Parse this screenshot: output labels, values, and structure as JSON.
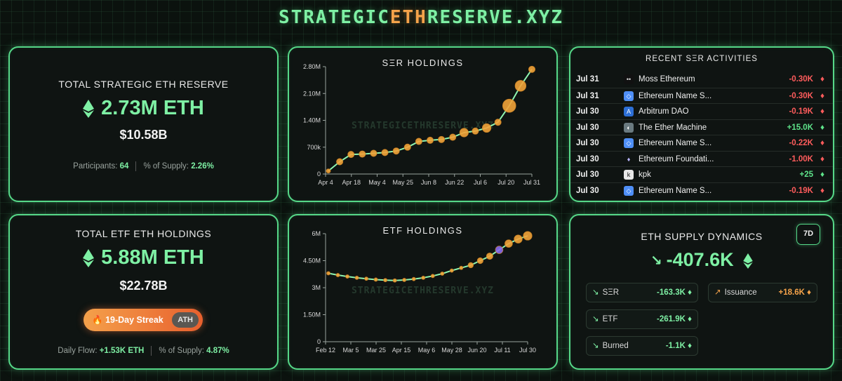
{
  "site": {
    "title_pre": "STRATEGIC",
    "title_accent": "ETH",
    "title_post": "RESERVE.XYZ"
  },
  "reserve": {
    "label": "TOTAL STRATEGIC ETH RESERVE",
    "value": "2.73M ETH",
    "usd": "$10.58B",
    "participants_label": "Participants:",
    "participants_value": "64",
    "supply_label": "% of Supply:",
    "supply_value": "2.26%"
  },
  "etf": {
    "label": "TOTAL ETF ETH HOLDINGS",
    "value": "5.88M ETH",
    "usd": "$22.78B",
    "streak_label": "19-Day Streak",
    "streak_icon": "fire-icon",
    "ath_label": "ATH",
    "flow_label": "Daily Flow:",
    "flow_value": "+1.53K ETH",
    "supply_label": "% of Supply:",
    "supply_value": "4.87%"
  },
  "watermark": "STRATEGICETHRESERVE.XYZ",
  "chart_data": [
    {
      "type": "line",
      "title": "SΞR HOLDINGS",
      "x_tick_labels": [
        "Apr 4",
        "Apr 18",
        "May 4",
        "May 25",
        "Jun 8",
        "Jun 22",
        "Jul 6",
        "Jul 20",
        "Jul 31"
      ],
      "y_tick_labels": [
        "0",
        "700k",
        "1.40M",
        "2.10M",
        "2.80M"
      ],
      "ylim": [
        0,
        2800000
      ],
      "x": [
        "Apr 4",
        "Apr 11",
        "Apr 18",
        "Apr 25",
        "May 1",
        "May 7",
        "May 14",
        "May 21",
        "May 25",
        "Jun 1",
        "Jun 8",
        "Jun 15",
        "Jun 22",
        "Jun 29",
        "Jul 6",
        "Jul 13",
        "Jul 20",
        "Jul 27",
        "Jul 31"
      ],
      "values": [
        80000,
        320000,
        510000,
        520000,
        540000,
        560000,
        600000,
        700000,
        850000,
        880000,
        900000,
        960000,
        1080000,
        1120000,
        1200000,
        1350000,
        1780000,
        2300000,
        2730000
      ],
      "marker_sizes": [
        1,
        2,
        2,
        2,
        2,
        2,
        2,
        2,
        2,
        2,
        2,
        2,
        3,
        2,
        3,
        2,
        5,
        4,
        2
      ],
      "grid": false,
      "marker_color": "#f2a33a",
      "line_color": "#8ef5b0"
    },
    {
      "type": "line",
      "title": "ETF HOLDINGS",
      "x_tick_labels": [
        "Feb 12",
        "Mar 5",
        "Mar 25",
        "Apr 15",
        "May 6",
        "May 28",
        "Jun 20",
        "Jul 11",
        "Jul 30"
      ],
      "y_tick_labels": [
        "0",
        "1.50M",
        "3M",
        "4.50M",
        "6M"
      ],
      "ylim": [
        0,
        6000000
      ],
      "x": [
        "Feb 12",
        "Feb 20",
        "Mar 1",
        "Mar 10",
        "Mar 20",
        "Mar 30",
        "Apr 10",
        "Apr 20",
        "Apr 30",
        "May 10",
        "May 20",
        "May 30",
        "Jun 10",
        "Jun 20",
        "Jun 30",
        "Jul 5",
        "Jul 10",
        "Jul 14",
        "Jul 18",
        "Jul 22",
        "Jul 26",
        "Jul 30"
      ],
      "values": [
        3800000,
        3700000,
        3620000,
        3550000,
        3500000,
        3450000,
        3420000,
        3400000,
        3430000,
        3480000,
        3550000,
        3650000,
        3780000,
        3950000,
        4100000,
        4250000,
        4500000,
        4750000,
        5100000,
        5450000,
        5700000,
        5880000
      ],
      "grid": false,
      "marker_color": "#f2a33a",
      "highlight_color": "#8a6cf0",
      "line_color": "#8ef5b0"
    }
  ],
  "activities": {
    "title": "RECENT SΞR ACTIVITIES",
    "rows": [
      {
        "date": "Jul 31",
        "icon": "moss-logo-icon",
        "name": "Moss Ethereum",
        "amount": "-0.30K",
        "dir": "neg"
      },
      {
        "date": "Jul 31",
        "icon": "ens-logo-icon",
        "name": "Ethereum Name S...",
        "amount": "-0.30K",
        "dir": "neg"
      },
      {
        "date": "Jul 30",
        "icon": "arbitrum-logo-icon",
        "name": "Arbitrum DAO",
        "amount": "-0.19K",
        "dir": "neg"
      },
      {
        "date": "Jul 30",
        "icon": "ether-machine-logo-icon",
        "name": "The Ether Machine",
        "amount": "+15.0K",
        "dir": "pos"
      },
      {
        "date": "Jul 30",
        "icon": "ens-logo-icon",
        "name": "Ethereum Name S...",
        "amount": "-0.22K",
        "dir": "neg"
      },
      {
        "date": "Jul 30",
        "icon": "ethereum-foundation-logo-icon",
        "name": "Ethereum Foundati...",
        "amount": "-1.00K",
        "dir": "neg"
      },
      {
        "date": "Jul 30",
        "icon": "kpk-logo-icon",
        "name": "kpk",
        "amount": "+25",
        "dir": "pos"
      },
      {
        "date": "Jul 30",
        "icon": "ens-logo-icon",
        "name": "Ethereum Name S...",
        "amount": "-0.19K",
        "dir": "neg"
      }
    ]
  },
  "supply": {
    "title": "ETH SUPPLY DYNAMICS",
    "period": "7D",
    "value": "-407.6K",
    "ser_label": "SΞR",
    "ser_value": "-163.3K",
    "etf_label": "ETF",
    "etf_value": "-261.9K",
    "burned_label": "Burned",
    "burned_value": "-1.1K",
    "issuance_label": "Issuance",
    "issuance_value": "+18.6K"
  },
  "colors": {
    "accent_green": "#7ef0a4",
    "accent_orange": "#f5a34a",
    "negative": "#ff5c5c"
  }
}
